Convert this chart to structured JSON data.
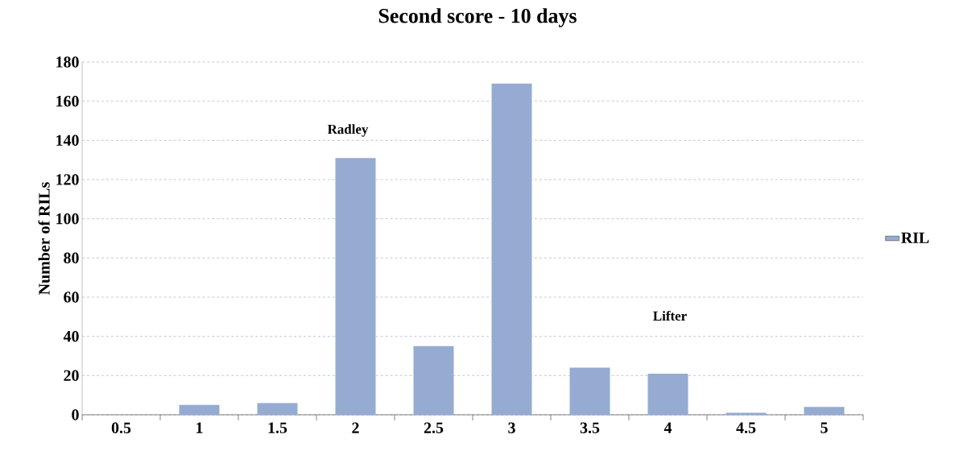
{
  "chart_data": {
    "type": "bar",
    "title": "Second score - 10 days",
    "ylabel": "Number of RILs",
    "categories": [
      "0.5",
      "1",
      "1.5",
      "2",
      "2.5",
      "3",
      "3.5",
      "4",
      "4.5",
      "5"
    ],
    "series": [
      {
        "name": "RIL",
        "color": "#95abd2",
        "values": [
          0,
          5,
          6,
          131,
          35,
          169,
          24,
          21,
          1,
          4
        ]
      }
    ],
    "ylim": [
      0,
      180
    ],
    "yticks": [
      0,
      20,
      40,
      60,
      80,
      100,
      120,
      140,
      160,
      180
    ],
    "grid": "y",
    "legend": "right",
    "annotations": [
      "Radley",
      "Lifter"
    ]
  }
}
